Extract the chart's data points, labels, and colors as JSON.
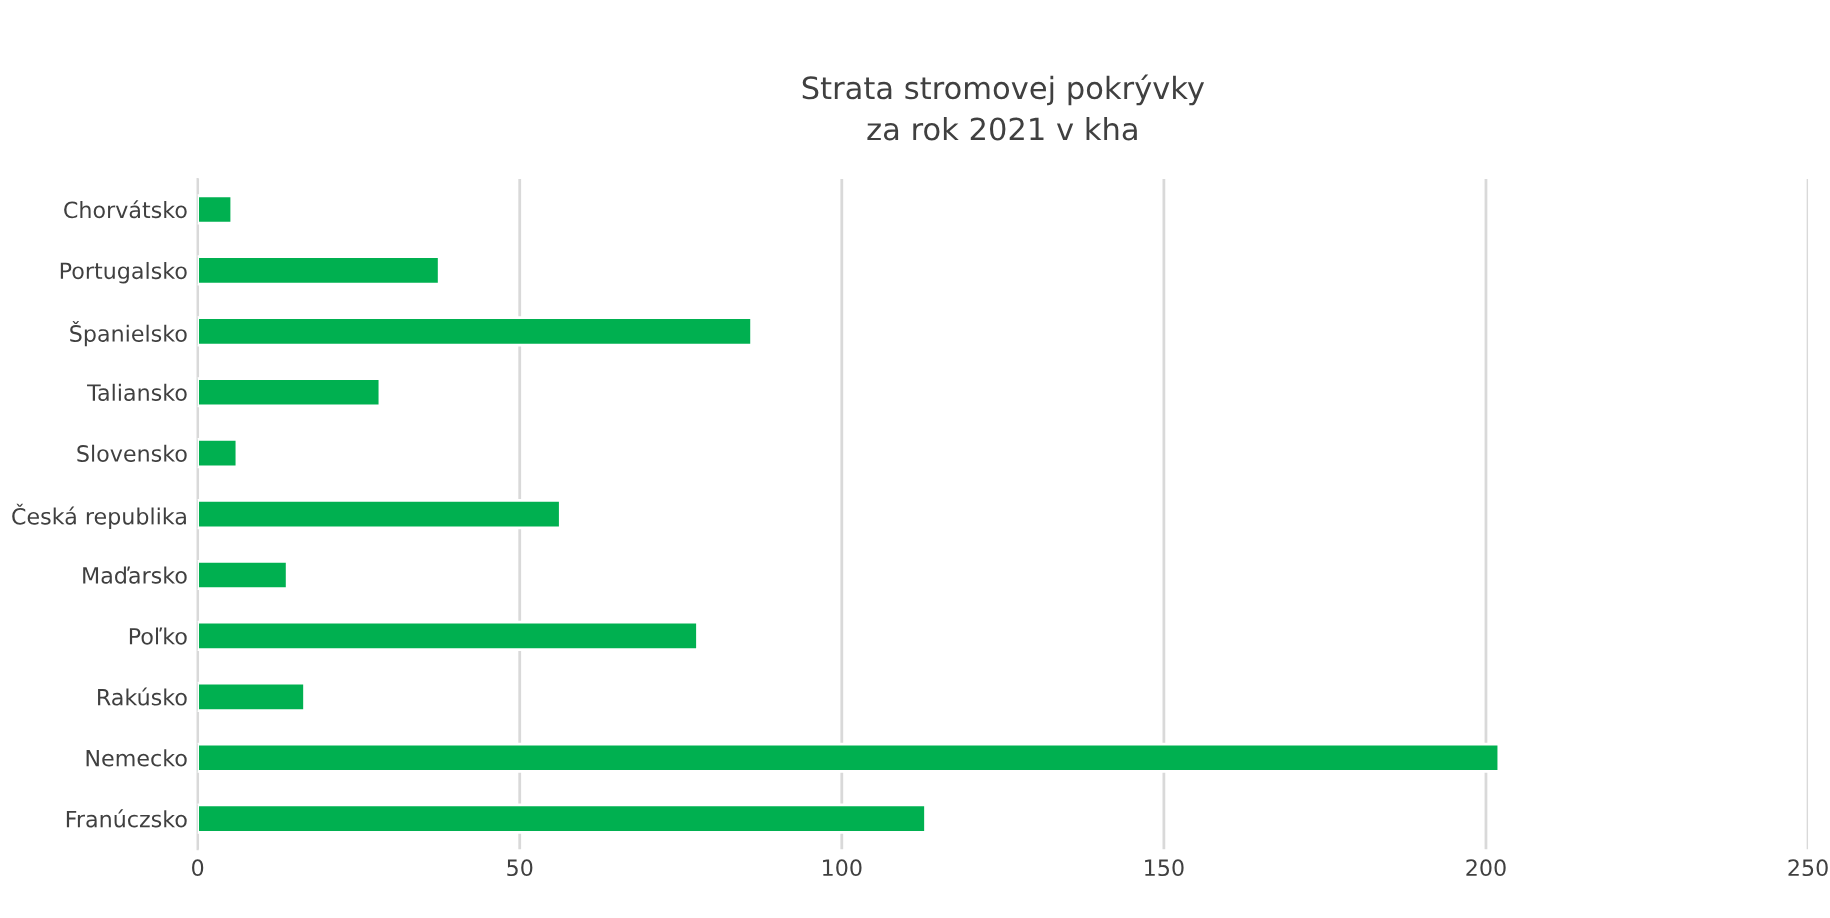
{
  "chart_data": {
    "type": "bar",
    "orientation": "horizontal",
    "title": "Strata stromovej pokrývky\nza rok 2021 v kha",
    "categories": [
      "Chorvátsko",
      "Portugalsko",
      "Španielsko",
      "Taliansko",
      "Slovensko",
      "Česká republika",
      "Maďarsko",
      "Poľko",
      "Rakúsko",
      "Nemecko",
      "Franúczsko"
    ],
    "values": [
      5.3,
      37.5,
      86,
      28.3,
      6.1,
      56.3,
      13.9,
      77.6,
      16.6,
      202,
      113
    ],
    "color": "#00b050",
    "xlim": [
      0,
      250
    ],
    "xticks": [
      0,
      50,
      100,
      150,
      200,
      250
    ],
    "grid": "x"
  }
}
